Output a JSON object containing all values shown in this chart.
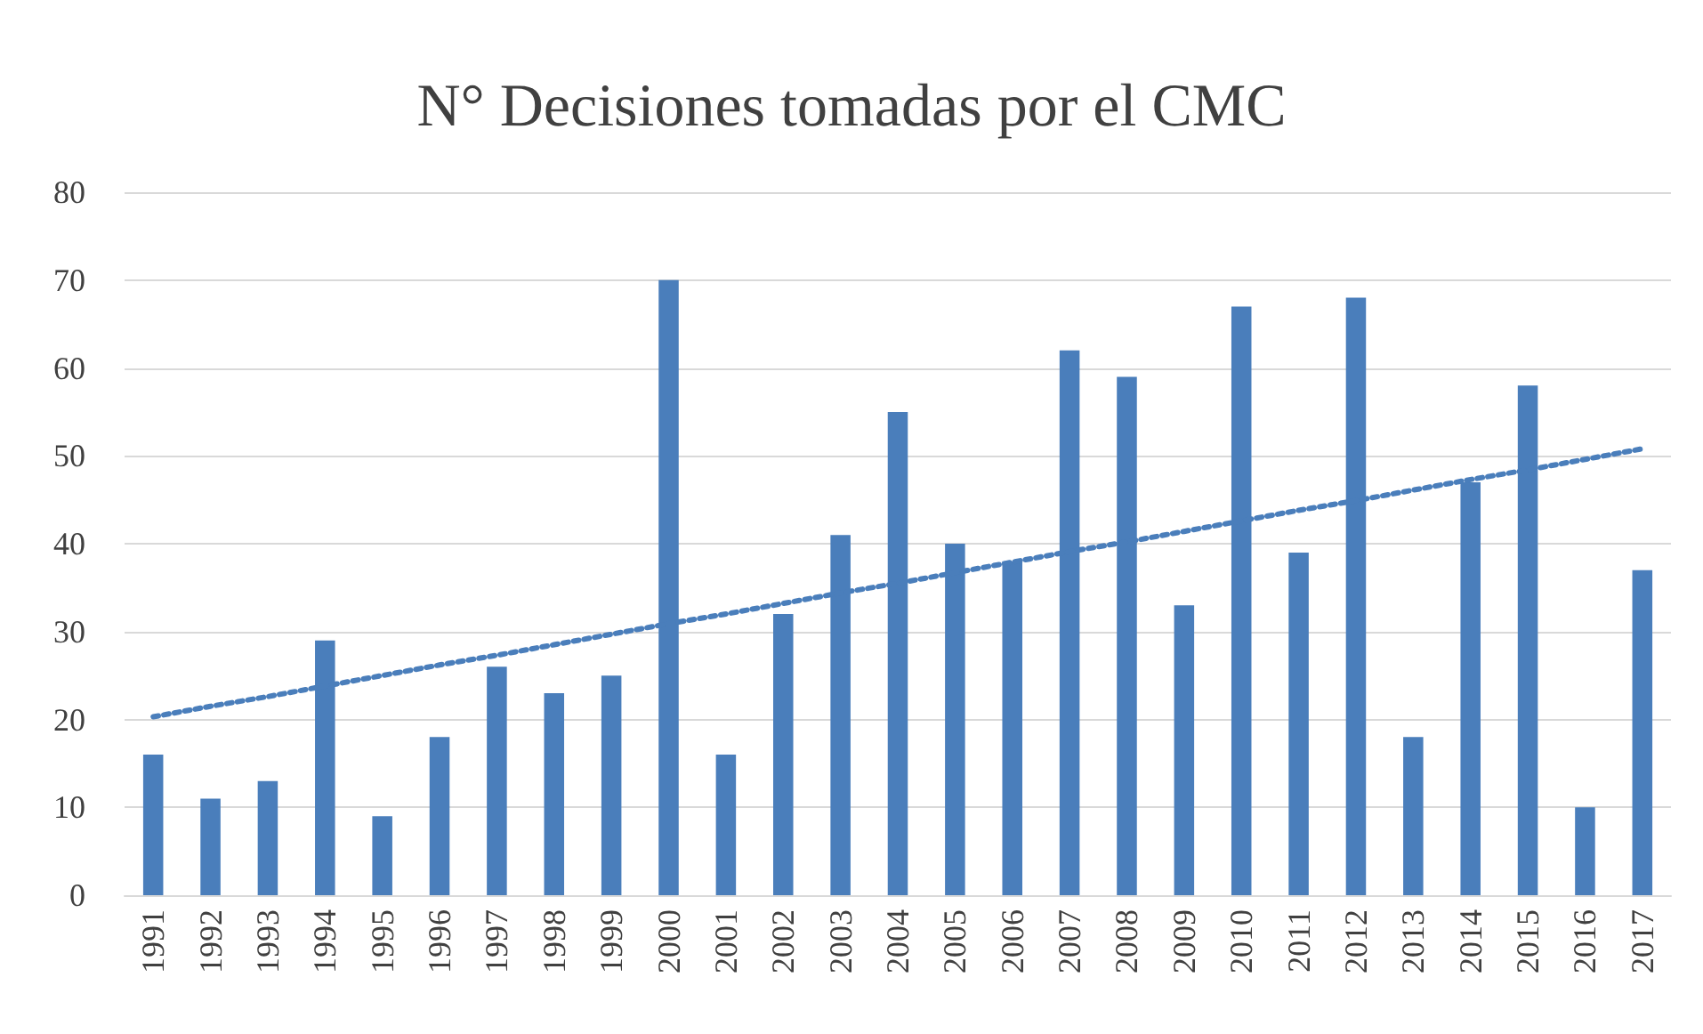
{
  "chart_data": {
    "type": "bar",
    "title": "N° Decisiones tomadas por el CMC",
    "categories": [
      "1991",
      "1992",
      "1993",
      "1994",
      "1995",
      "1996",
      "1997",
      "1998",
      "1999",
      "2000",
      "2001",
      "2002",
      "2003",
      "2004",
      "2005",
      "2006",
      "2007",
      "2008",
      "2009",
      "2010",
      "2011",
      "2012",
      "2013",
      "2014",
      "2015",
      "2016",
      "2017"
    ],
    "series": [
      {
        "color": "#4a7ebb",
        "values": [
          16,
          11,
          13,
          29,
          9,
          18,
          26,
          23,
          25,
          70,
          16,
          32,
          41,
          55,
          40,
          38,
          62,
          59,
          33,
          67,
          39,
          68,
          18,
          47,
          58,
          10,
          37
        ]
      },
      {
        "type": "line",
        "color": "#4a7ebb",
        "line_style": "dotted",
        "marker": "none",
        "values": [
          20.3,
          21.5,
          22.6,
          23.8,
          25.0,
          26.2,
          27.3,
          28.5,
          29.7,
          30.9,
          32.0,
          33.2,
          34.4,
          35.5,
          36.7,
          37.9,
          39.1,
          40.2,
          41.4,
          42.6,
          43.8,
          44.9,
          46.1,
          47.3,
          48.4,
          49.6,
          50.8
        ]
      }
    ],
    "ylim": [
      0,
      80
    ],
    "yticks": [
      0,
      10,
      20,
      30,
      40,
      50,
      60,
      70,
      80
    ],
    "grid": "y"
  }
}
